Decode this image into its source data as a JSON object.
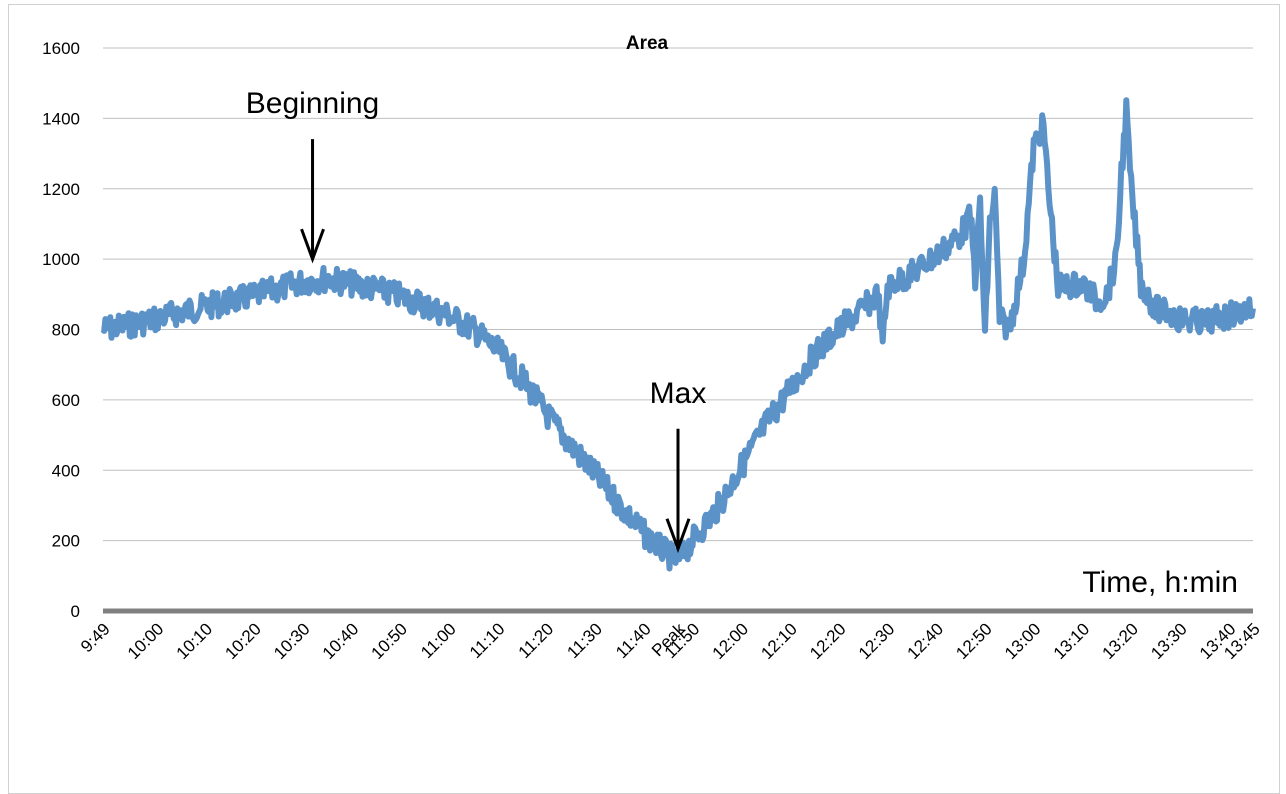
{
  "chart_data": {
    "type": "line",
    "title": "Area",
    "xlabel": "Time, h:min",
    "ylabel": "",
    "ylim": [
      0,
      1600
    ],
    "yticks": [
      0,
      200,
      400,
      600,
      800,
      1000,
      1200,
      1400,
      1600
    ],
    "xlim": [
      "9:49",
      "13:45"
    ],
    "xticks": [
      "9:49",
      "10:00",
      "10:10",
      "10:20",
      "10:30",
      "10:40",
      "10:50",
      "11:00",
      "11:10",
      "11:20",
      "11:30",
      "11:40",
      "Peak",
      "11:50",
      "12:00",
      "12:10",
      "12:20",
      "12:30",
      "12:40",
      "12:50",
      "13:00",
      "13:10",
      "13:20",
      "13:30",
      "13:40",
      "13:45"
    ],
    "grid": true,
    "legend": "none",
    "colors": {
      "series": "#5b93c9",
      "axis": "#808080",
      "grid": "#c0c0c0"
    },
    "annotations": [
      {
        "text": "Beginning",
        "x": "10:32",
        "y": 1000
      },
      {
        "text": "Max",
        "x": "11:47",
        "y": 390
      }
    ],
    "series": [
      {
        "x": [
          "9:49",
          "9:55",
          "10:00",
          "10:05",
          "10:10",
          "10:15",
          "10:20",
          "10:25",
          "10:30",
          "10:35",
          "10:40",
          "10:45",
          "10:50",
          "10:55",
          "11:00",
          "11:05",
          "11:10",
          "11:15",
          "11:20",
          "11:25",
          "11:30",
          "11:35",
          "11:40",
          "11:45",
          "11:47",
          "11:50",
          "11:55",
          "12:00",
          "12:05",
          "12:10",
          "12:15",
          "12:20",
          "12:25",
          "12:28",
          "12:29",
          "12:30",
          "12:35",
          "12:40",
          "12:45",
          "12:47",
          "12:48",
          "12:49",
          "12:50",
          "12:51",
          "12:52",
          "12:53",
          "12:55",
          "12:58",
          "13:00",
          "13:02",
          "13:03",
          "13:05",
          "13:10",
          "13:13",
          "13:15",
          "13:17",
          "13:18",
          "13:19",
          "13:20",
          "13:22",
          "13:25",
          "13:30",
          "13:35",
          "13:40",
          "13:45"
        ],
        "values": [
          800,
          815,
          830,
          850,
          865,
          880,
          895,
          915,
          935,
          945,
          930,
          915,
          895,
          870,
          840,
          800,
          740,
          660,
          560,
          470,
          390,
          300,
          220,
          160,
          140,
          200,
          290,
          410,
          530,
          630,
          730,
          800,
          860,
          900,
          760,
          920,
          960,
          1010,
          1070,
          1120,
          950,
          1160,
          780,
          1100,
          1180,
          830,
          800,
          1000,
          1320,
          1380,
          1200,
          920,
          930,
          880,
          900,
          1000,
          1250,
          1420,
          1200,
          930,
          860,
          830,
          820,
          840,
          860
        ]
      }
    ]
  }
}
